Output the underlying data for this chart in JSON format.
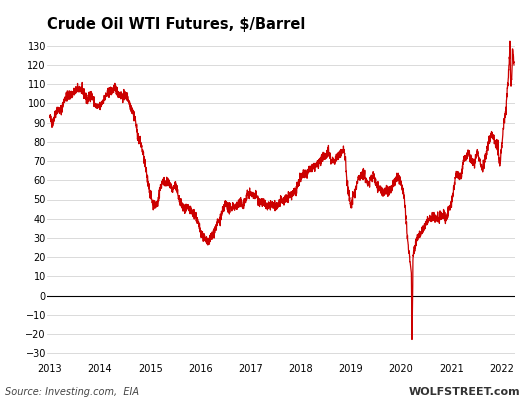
{
  "title": "Crude Oil WTI Futures, $/Barrel",
  "source_left": "Source: Investing.com,  EIA",
  "source_right": "WOLFSTREET.com",
  "line_color": "#cc0000",
  "background_color": "#ffffff",
  "grid_color": "#cccccc",
  "zero_line_color": "#000000",
  "title_color": "#000000",
  "ylim": [
    -35,
    135
  ],
  "yticks": [
    -30,
    -20,
    -10,
    0,
    10,
    20,
    30,
    40,
    50,
    60,
    70,
    80,
    90,
    100,
    110,
    120,
    130
  ],
  "xlim_start": 2012.95,
  "xlim_end": 2022.28,
  "xtick_years": [
    2013,
    2014,
    2015,
    2016,
    2017,
    2018,
    2019,
    2020,
    2021,
    2022
  ]
}
